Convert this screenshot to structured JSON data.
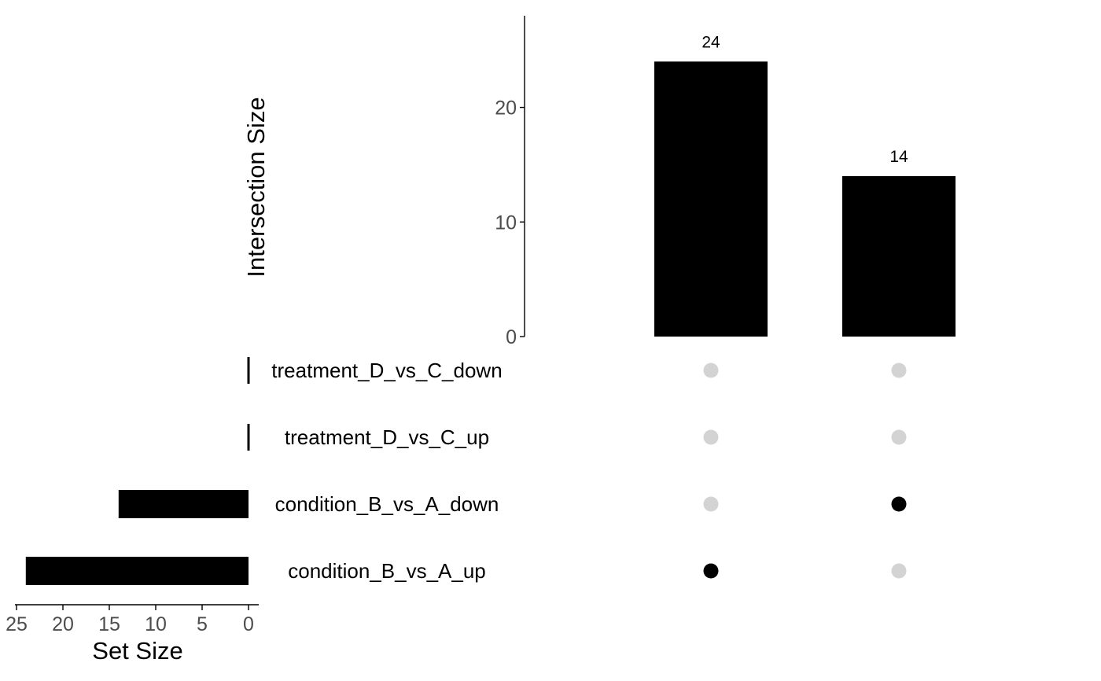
{
  "chart_data": [
    {
      "type": "bar",
      "role": "intersection-size",
      "ylabel": "Intersection Size",
      "ylim": [
        0,
        28
      ],
      "yticks": [
        0,
        10,
        20
      ],
      "categories": [
        "condition_B_vs_A_up only",
        "condition_B_vs_A_down only"
      ],
      "values": [
        24,
        14
      ],
      "data_labels": [
        "24",
        "14"
      ],
      "bar_color": "#000000",
      "grid": false
    },
    {
      "type": "bar",
      "orientation": "horizontal",
      "role": "set-size",
      "xlabel": "Set Size",
      "xlim": [
        26,
        0
      ],
      "xticks": [
        25,
        20,
        15,
        10,
        5,
        0
      ],
      "categories": [
        "treatment_D_vs_C_down",
        "treatment_D_vs_C_up",
        "condition_B_vs_A_down",
        "condition_B_vs_A_up"
      ],
      "values": [
        0,
        0,
        14,
        24
      ],
      "bar_color": "#000000",
      "grid": false
    },
    {
      "type": "matrix",
      "role": "intersection-matrix",
      "rows": [
        "treatment_D_vs_C_down",
        "treatment_D_vs_C_up",
        "condition_B_vs_A_down",
        "condition_B_vs_A_up"
      ],
      "columns": [
        [
          false,
          false,
          false,
          true
        ],
        [
          false,
          false,
          true,
          false
        ]
      ],
      "active_color": "#000000",
      "inactive_color": "#d3d3d3"
    }
  ]
}
